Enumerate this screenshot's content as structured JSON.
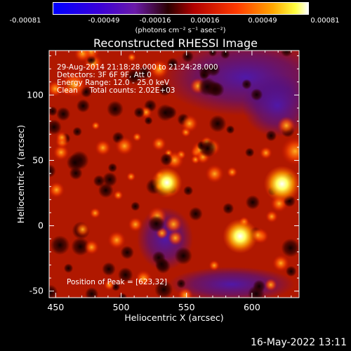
{
  "colorbar": {
    "ticks": [
      "-0.00081",
      "-0.00049",
      "-0.00016",
      "0.00016",
      "0.00049",
      "0.00081"
    ],
    "unit": "(photons cm⁻² s⁻¹ asec⁻²)"
  },
  "colors": {
    "background": "#000000",
    "text": "#ffffff"
  },
  "chart_data": {
    "type": "heatmap",
    "title": "Reconstructed RHESSI Image",
    "xlabel": "Heliocentric X (arcsec)",
    "ylabel": "Heliocentric Y (arcsec)",
    "xlim": [
      445,
      636
    ],
    "ylim": [
      -55,
      134
    ],
    "x_ticks": [
      450,
      500,
      550,
      600
    ],
    "y_ticks": [
      -50,
      0,
      50,
      100
    ],
    "colormap": "rainbow-like: blue to violet to red to orange to yellow to white",
    "color_range": [
      -0.00081,
      0.00081
    ],
    "info_lines": [
      "29-Aug-2014 21:18:28.000 to 21:24:28.000",
      "Detectors: 3F 6F 9F, Att 0",
      "Energy Range: 12.0 - 25.0 keV",
      "Clean     Total counts: 2.02E+03"
    ],
    "peak_label": "Position of Peak = [623,32]",
    "peak": {
      "x": 623,
      "y": 32
    },
    "bright_sources": [
      {
        "x": 591,
        "y": -8,
        "value": 0.00075
      },
      {
        "x": 623,
        "y": 32,
        "value": 0.00081
      },
      {
        "x": 535,
        "y": 33,
        "value": 0.0006
      },
      {
        "x": 633,
        "y": 57,
        "value": 0.00052
      },
      {
        "x": 464,
        "y": 108,
        "value": 0.00045
      }
    ]
  },
  "timestamp": "16-May-2022 13:11"
}
